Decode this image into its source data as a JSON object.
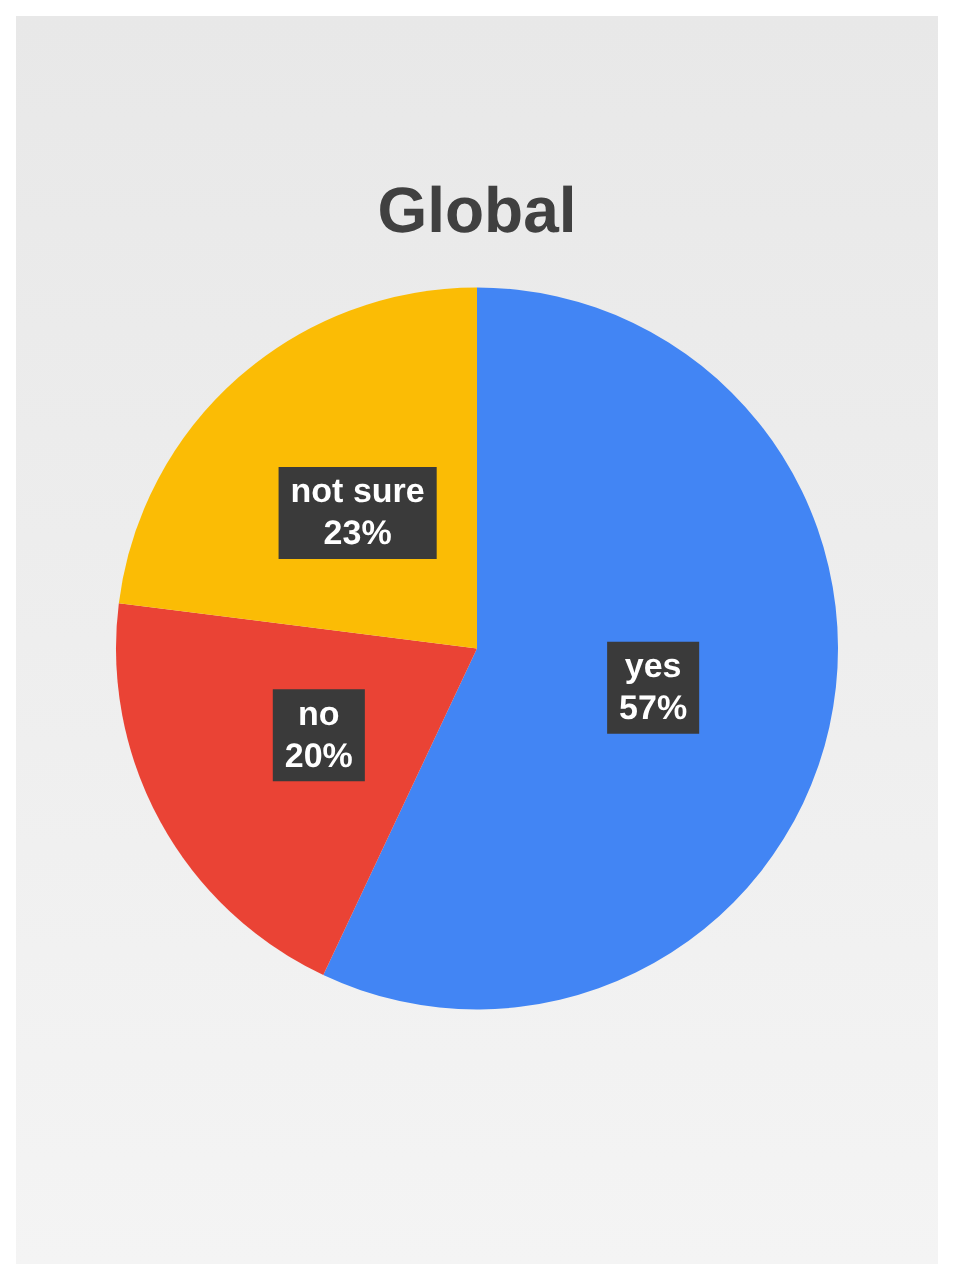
{
  "chart_data": {
    "type": "pie",
    "title": "Global",
    "categories": [
      "yes",
      "no",
      "not sure"
    ],
    "values": [
      57,
      20,
      23
    ],
    "colors": [
      "#4285f4",
      "#ea4335",
      "#fbbc05"
    ],
    "value_labels": [
      "57%",
      "20%",
      "23%"
    ],
    "legend": false
  }
}
